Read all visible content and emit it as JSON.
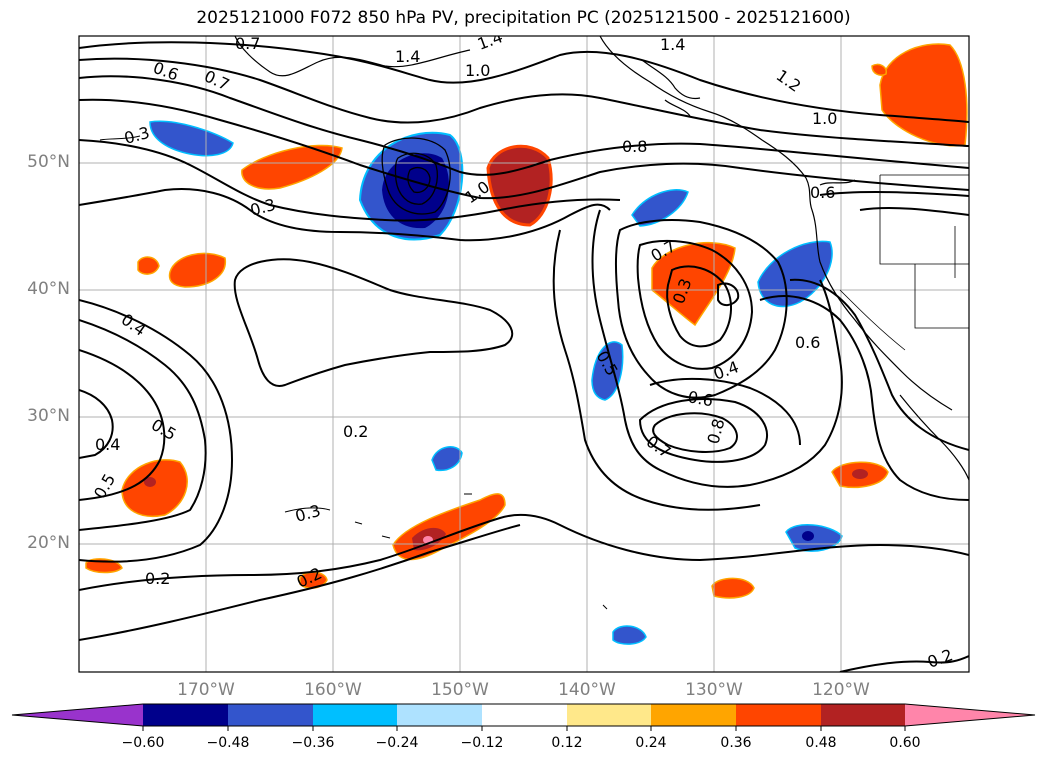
{
  "title": "2025121000 F072 850 hPa PV, precipitation PC (2025121500 - 2025121600)",
  "latitude_labels": [
    "50°N",
    "40°N",
    "30°N",
    "20°N"
  ],
  "longitude_labels": [
    "170°W",
    "160°W",
    "150°W",
    "140°W",
    "130°W",
    "120°W"
  ],
  "map_extent": {
    "lon_min": -180,
    "lon_max": -110,
    "lat_min": 10,
    "lat_max": 60
  },
  "colorbar": {
    "ticks": [
      "−0.60",
      "−0.48",
      "−0.36",
      "−0.24",
      "−0.12",
      "0.12",
      "0.24",
      "0.36",
      "0.48",
      "0.60"
    ],
    "colors": [
      "#9933cc",
      "#00008b",
      "#3355cc",
      "#00bfff",
      "#aee2ff",
      "#ffffff",
      "#ffe88a",
      "#ffa500",
      "#ff4500",
      "#b22222",
      "#ff85aa"
    ]
  },
  "contour_labels": [
    "0.7",
    "0.6",
    "0.7",
    "0.3",
    "1.4",
    "1.0",
    "1.4",
    "1.4",
    "1.2",
    "1.0",
    "0.8",
    "1.0",
    "0.6",
    "0.3",
    "0.7",
    "0.3",
    "0.4",
    "0.5",
    "0.4",
    "0.5",
    "0.6",
    "0.2",
    "0.6",
    "0.7",
    "0.8",
    "0.5",
    "0.3",
    "0.2",
    "0.2",
    "0.2",
    "0.4"
  ]
}
